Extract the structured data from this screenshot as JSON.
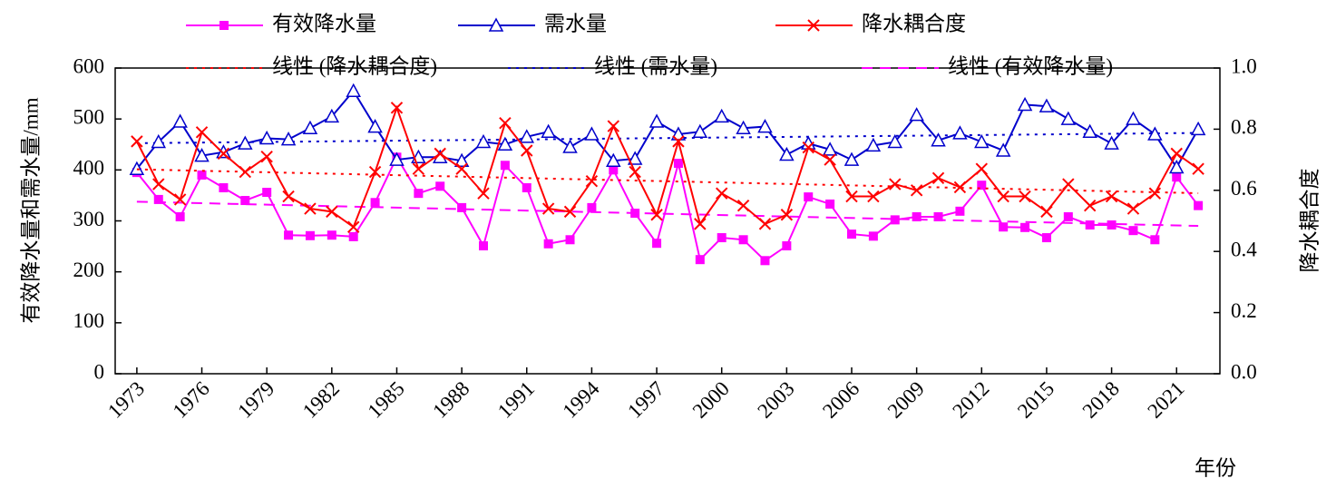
{
  "chart_data": {
    "type": "line",
    "x": [
      1973,
      1974,
      1975,
      1976,
      1977,
      1978,
      1979,
      1980,
      1981,
      1982,
      1983,
      1984,
      1985,
      1986,
      1987,
      1988,
      1989,
      1990,
      1991,
      1992,
      1993,
      1994,
      1995,
      1996,
      1997,
      1998,
      1999,
      2000,
      2001,
      2002,
      2003,
      2004,
      2005,
      2006,
      2007,
      2008,
      2009,
      2010,
      2011,
      2012,
      2013,
      2014,
      2015,
      2016,
      2017,
      2018,
      2019,
      2020,
      2021,
      2022
    ],
    "xlim": [
      1972,
      2023
    ],
    "xticks": [
      1973,
      1976,
      1979,
      1982,
      1985,
      1988,
      1991,
      1994,
      1997,
      2000,
      2003,
      2006,
      2009,
      2012,
      2015,
      2018,
      2021
    ],
    "xlabel": "年份",
    "ylabel": "有效降水量和需水量/mm",
    "y2label": "降水耦合度",
    "ylim": [
      0,
      600
    ],
    "yticks": [
      0,
      100,
      200,
      300,
      400,
      500,
      600
    ],
    "y2lim": [
      0,
      1
    ],
    "y2ticks": [
      {
        "value": 0,
        "label": "0.0"
      },
      0.2,
      0.4,
      0.6,
      0.8,
      {
        "value": 1,
        "label": "1.0"
      }
    ],
    "series": [
      {
        "name": "有效降水量",
        "color": "#ff00ff",
        "marker": "square",
        "trendline": "线性 (有效降水量)",
        "values": [
          395,
          342,
          308,
          390,
          365,
          340,
          356,
          272,
          271,
          272,
          269,
          336,
          425,
          354,
          368,
          326,
          251,
          409,
          365,
          255,
          263,
          326,
          400,
          315,
          256,
          413,
          224,
          267,
          263,
          222,
          251,
          347,
          333,
          274,
          270,
          302,
          308,
          308,
          319,
          370,
          288,
          287,
          267,
          308,
          292,
          292,
          281,
          263,
          386,
          330
        ]
      },
      {
        "name": "需水量",
        "color": "#0000cc",
        "marker": "triangle",
        "trendline": "线性 (需水量)",
        "values": [
          402,
          455,
          495,
          428,
          435,
          452,
          462,
          460,
          482,
          505,
          555,
          485,
          420,
          425,
          425,
          418,
          455,
          450,
          465,
          475,
          445,
          470,
          418,
          422,
          495,
          470,
          475,
          505,
          482,
          485,
          430,
          452,
          440,
          420,
          448,
          455,
          508,
          458,
          472,
          455,
          438,
          528,
          525,
          500,
          475,
          452,
          500,
          470,
          405,
          480
        ]
      },
      {
        "name": "降水耦合度",
        "color": "#ff0000",
        "marker": "x",
        "axis": "y2",
        "trendline": "线性 (降水耦合度)",
        "values": [
          0.76,
          0.62,
          0.57,
          0.79,
          0.72,
          0.66,
          0.71,
          0.58,
          0.54,
          0.53,
          0.48,
          0.66,
          0.87,
          0.67,
          0.72,
          0.67,
          0.59,
          0.82,
          0.73,
          0.54,
          0.53,
          0.63,
          0.81,
          0.66,
          0.52,
          0.76,
          0.49,
          0.59,
          0.55,
          0.49,
          0.52,
          0.74,
          0.7,
          0.58,
          0.58,
          0.62,
          0.6,
          0.64,
          0.61,
          0.67,
          0.58,
          0.58,
          0.53,
          0.62,
          0.55,
          0.58,
          0.54,
          0.59,
          0.72,
          0.67
        ]
      }
    ]
  }
}
